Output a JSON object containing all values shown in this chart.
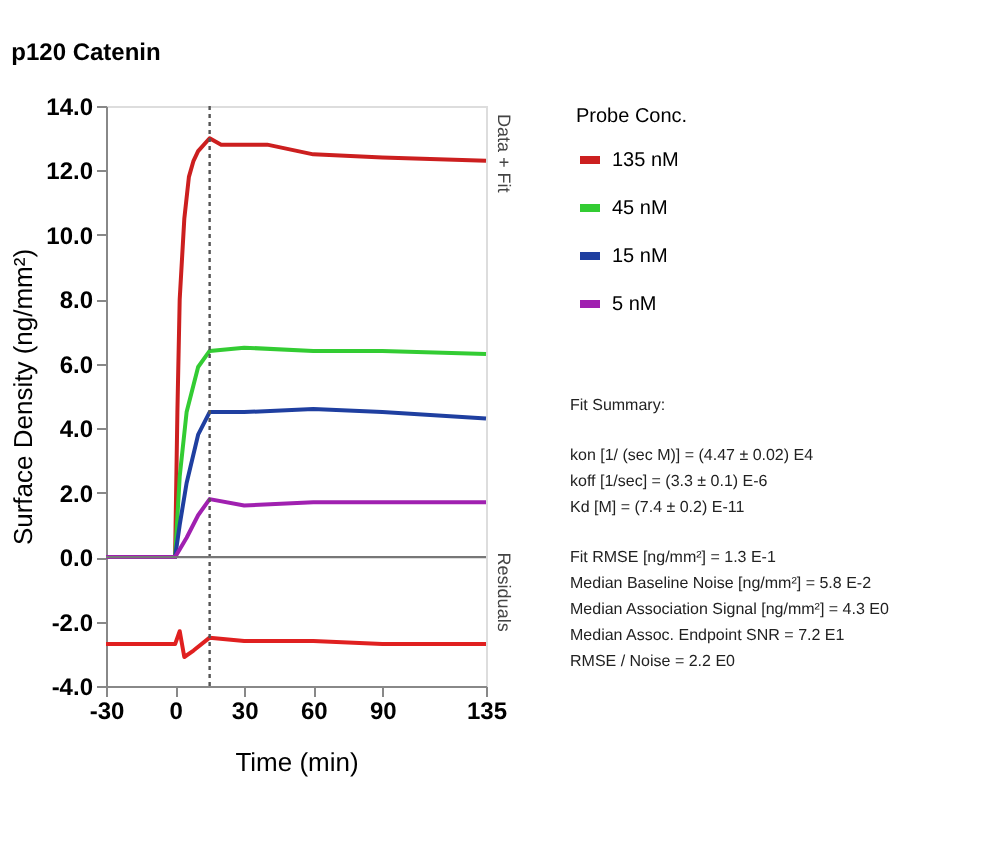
{
  "chart_data": {
    "type": "line",
    "title": "p120 Catenin",
    "xlabel": "Time (min)",
    "ylabel": "Surface Density (ng/mm²)",
    "legend_title": "Probe Conc.",
    "legend": "right",
    "xlim": [
      -30,
      135
    ],
    "xticks": [
      -30,
      0,
      30,
      60,
      90,
      135
    ],
    "ylim": [
      -4,
      14
    ],
    "yticks": [
      {
        "value": -4,
        "label": "-4.0"
      },
      {
        "value": -2,
        "label": "-2.0"
      },
      {
        "value": 0,
        "label": "0.0"
      },
      {
        "value": 2,
        "label": "2.0"
      },
      {
        "value": 4,
        "label": "4.0"
      },
      {
        "value": 6,
        "label": "6.0"
      },
      {
        "value": 8,
        "label": "8.0"
      },
      {
        "value": 10,
        "label": "10.0"
      },
      {
        "value": 12,
        "label": "12.0"
      },
      {
        "value": 14,
        "label": "14.0"
      }
    ],
    "grid": false,
    "series": [
      {
        "name": "135 nM",
        "color": "#cc1f1f",
        "x": [
          -30,
          -15,
          0,
          1,
          2,
          4,
          6,
          8,
          10,
          15,
          20,
          40,
          60,
          90,
          135
        ],
        "values": [
          0,
          0,
          0,
          4.5,
          8,
          10.5,
          11.8,
          12.3,
          12.6,
          13.0,
          12.8,
          12.8,
          12.5,
          12.4,
          12.3
        ]
      },
      {
        "name": "45 nM",
        "color": "#33cc33",
        "x": [
          -30,
          0,
          2,
          5,
          10,
          15,
          30,
          60,
          90,
          135
        ],
        "values": [
          0,
          0,
          2.5,
          4.5,
          5.9,
          6.4,
          6.5,
          6.4,
          6.4,
          6.3
        ]
      },
      {
        "name": "15 nM",
        "color": "#1f3fa0",
        "x": [
          -30,
          0,
          2,
          5,
          10,
          15,
          30,
          60,
          90,
          135
        ],
        "values": [
          0,
          0,
          1.0,
          2.3,
          3.8,
          4.5,
          4.5,
          4.6,
          4.5,
          4.3
        ]
      },
      {
        "name": "5 nM",
        "color": "#a020b0",
        "x": [
          -30,
          0,
          5,
          10,
          15,
          30,
          60,
          90,
          135
        ],
        "values": [
          0,
          0,
          0.6,
          1.3,
          1.8,
          1.6,
          1.7,
          1.7,
          1.7
        ]
      },
      {
        "color": "#e02020",
        "x": [
          -30,
          -15,
          0,
          2,
          4,
          8,
          15,
          30,
          60,
          90,
          135
        ],
        "values": [
          -2.7,
          -2.7,
          -2.7,
          -2.3,
          -3.1,
          -2.9,
          -2.5,
          -2.6,
          -2.6,
          -2.7,
          -2.7
        ]
      }
    ],
    "ref_lines": [
      {
        "axis": "x",
        "value": 15,
        "color": "#555555",
        "line_style": "dotted"
      },
      {
        "axis": "y",
        "value": 0,
        "color": "#777777",
        "line_style": "solid"
      }
    ],
    "annotations": [
      "Data + Fit",
      "Residuals",
      "Fit Summary:",
      "kon  [1/ (sec M)]  =   (4.47 ± 0.02) E4",
      "koff  [1/sec]  =   (3.3 ± 0.1) E-6",
      "Kd  [M]  =   (7.4 ± 0.2) E-11",
      "Fit RMSE [ng/mm²]  =   1.3 E-1",
      "Median Baseline Noise [ng/mm²]  =   5.8 E-2",
      "Median Association Signal [ng/mm²]  =   4.3 E0",
      "Median Assoc. Endpoint SNR  =   7.2 E1",
      "RMSE / Noise  =   2.2 E0"
    ]
  }
}
